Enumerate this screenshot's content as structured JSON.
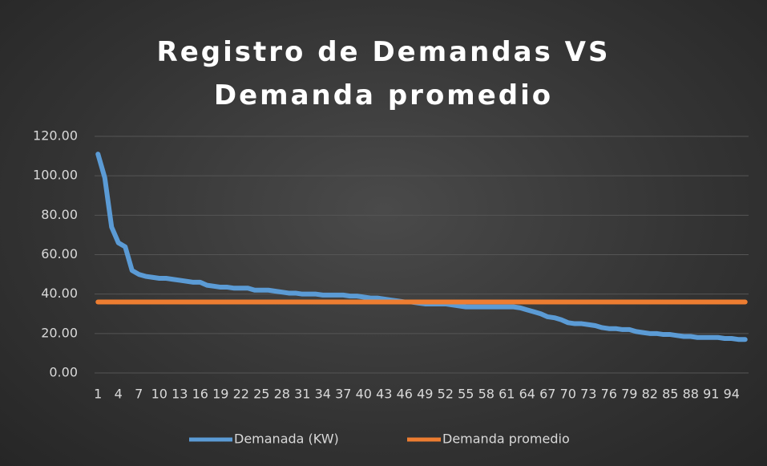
{
  "chart_data": {
    "type": "line",
    "title": "Registro de Demandas VS Demanda promedio",
    "categories": [
      "1",
      null,
      null,
      "4",
      null,
      null,
      "7",
      null,
      null,
      "10",
      null,
      null,
      "13",
      null,
      null,
      "16",
      null,
      null,
      "19",
      null,
      null,
      "22",
      null,
      null,
      "25",
      null,
      null,
      "28",
      null,
      null,
      "31",
      null,
      null,
      "34",
      null,
      null,
      "37",
      null,
      null,
      "40",
      null,
      null,
      "43",
      null,
      null,
      "46",
      null,
      null,
      "49",
      null,
      null,
      "52",
      null,
      null,
      "55",
      null,
      null,
      "58",
      null,
      null,
      "61",
      null,
      null,
      "64",
      null,
      null,
      "67",
      null,
      null,
      "70",
      null,
      null,
      "73",
      null,
      null,
      "76",
      null,
      null,
      "79",
      null,
      null,
      "82",
      null,
      null,
      "85",
      null,
      null,
      "88",
      null,
      null,
      "91",
      null,
      null,
      "94",
      null,
      null
    ],
    "series": [
      {
        "name": "Demanada (KW)",
        "color": "#5b9bd5",
        "values": [
          111,
          99,
          74,
          66,
          64,
          52,
          50,
          49,
          48.5,
          48,
          48,
          47.5,
          47,
          46.5,
          46,
          46,
          44.5,
          44,
          43.5,
          43.5,
          43,
          43,
          43,
          42,
          42,
          42,
          41.5,
          41,
          40.5,
          40.5,
          40,
          40,
          40,
          39.5,
          39.5,
          39.5,
          39.5,
          39,
          39,
          38.5,
          38,
          38,
          37.5,
          37,
          36.5,
          36,
          36,
          35.5,
          35,
          35,
          35,
          35,
          34.5,
          34,
          33.5,
          33.5,
          33.5,
          33.5,
          33.5,
          33.5,
          33.5,
          33.5,
          33,
          32,
          31,
          30,
          28.5,
          28,
          27,
          25.5,
          25,
          25,
          24.5,
          24,
          23,
          22.5,
          22.5,
          22,
          22,
          21,
          20.5,
          20,
          20,
          19.5,
          19.5,
          19,
          18.5,
          18.5,
          18,
          18,
          18,
          18,
          17.5,
          17.5,
          17,
          17
        ]
      },
      {
        "name": "Demanda promedio",
        "color": "#ed7d31",
        "values": [
          36,
          36,
          36,
          36,
          36,
          36,
          36,
          36,
          36,
          36,
          36,
          36,
          36,
          36,
          36,
          36,
          36,
          36,
          36,
          36,
          36,
          36,
          36,
          36,
          36,
          36,
          36,
          36,
          36,
          36,
          36,
          36,
          36,
          36,
          36,
          36,
          36,
          36,
          36,
          36,
          36,
          36,
          36,
          36,
          36,
          36,
          36,
          36,
          36,
          36,
          36,
          36,
          36,
          36,
          36,
          36,
          36,
          36,
          36,
          36,
          36,
          36,
          36,
          36,
          36,
          36,
          36,
          36,
          36,
          36,
          36,
          36,
          36,
          36,
          36,
          36,
          36,
          36,
          36,
          36,
          36,
          36,
          36,
          36,
          36,
          36,
          36,
          36,
          36,
          36,
          36,
          36,
          36,
          36,
          36,
          36
        ]
      }
    ],
    "ylim": [
      0,
      120
    ],
    "yticks": [
      {
        "value": 0,
        "label": "0.00"
      },
      {
        "value": 20,
        "label": "20.00"
      },
      {
        "value": 40,
        "label": "40.00"
      },
      {
        "value": 60,
        "label": "60.00"
      },
      {
        "value": 80,
        "label": "80.00"
      },
      {
        "value": 100,
        "label": "100.00"
      },
      {
        "value": 120,
        "label": "120.00"
      }
    ],
    "grid": true,
    "legend": "bottom"
  }
}
